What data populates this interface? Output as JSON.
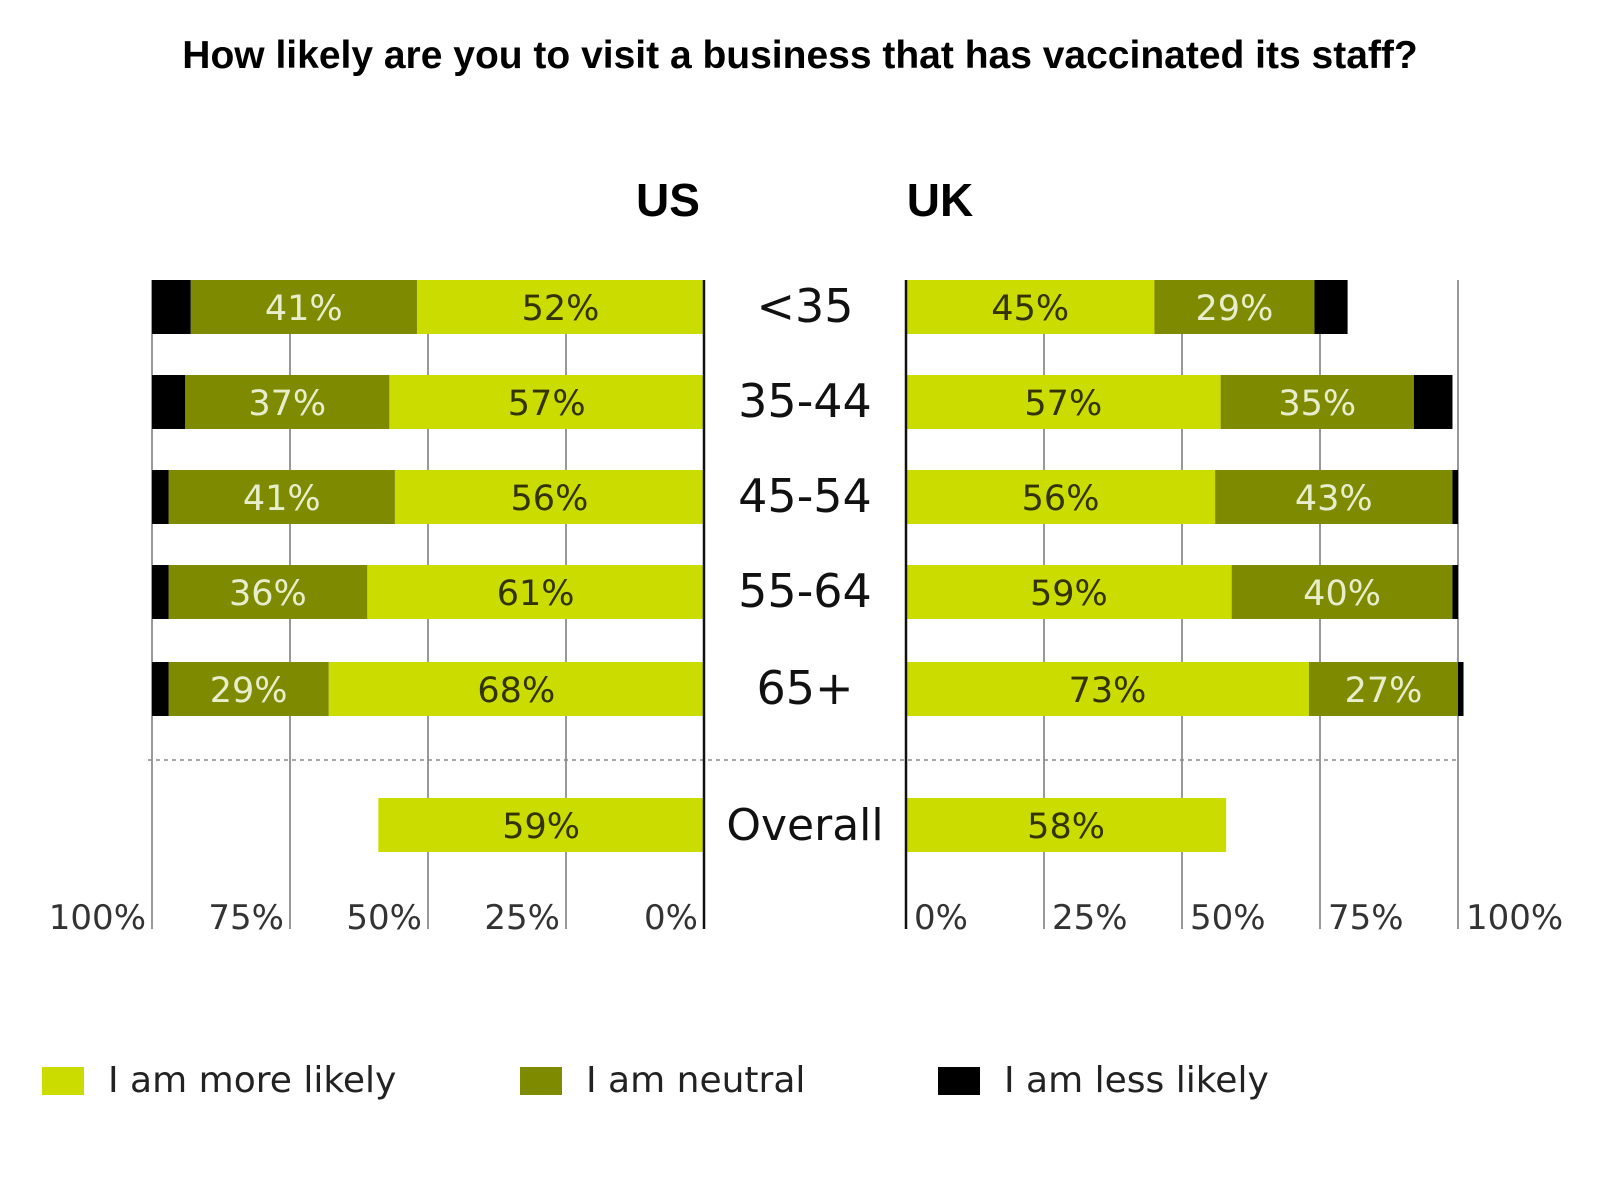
{
  "chart_data": {
    "type": "bar",
    "title": "How likely are you to visit a business that has vaccinated its staff?",
    "colors": {
      "more": "#cbdc00",
      "neutral": "#7e8a00",
      "less": "#000000"
    },
    "categories": [
      "<35",
      "35-44",
      "45-54",
      "55-64",
      "65+"
    ],
    "overall_label": "Overall",
    "x_ticks": [
      "0%",
      "25%",
      "50%",
      "75%",
      "100%"
    ],
    "xlim": [
      0,
      100
    ],
    "panels": [
      {
        "name": "US",
        "direction": "left",
        "series": [
          {
            "name": "I am more likely",
            "values": [
              52,
              57,
              56,
              61,
              68
            ],
            "labels": [
              "52%",
              "57%",
              "56%",
              "61%",
              "68%"
            ]
          },
          {
            "name": "I am neutral",
            "values": [
              41,
              37,
              41,
              36,
              29
            ],
            "labels": [
              "41%",
              "37%",
              "41%",
              "36%",
              "29%"
            ]
          },
          {
            "name": "I am less likely",
            "values": [
              7,
              6,
              3,
              3,
              3
            ]
          }
        ],
        "overall": {
          "value": 59,
          "label": "59%"
        }
      },
      {
        "name": "UK",
        "direction": "right",
        "series": [
          {
            "name": "I am more likely",
            "values": [
              45,
              57,
              56,
              59,
              73
            ],
            "labels": [
              "45%",
              "57%",
              "56%",
              "59%",
              "73%"
            ]
          },
          {
            "name": "I am neutral",
            "values": [
              29,
              35,
              43,
              40,
              27
            ],
            "labels": [
              "29%",
              "35%",
              "43%",
              "40%",
              "27%"
            ]
          },
          {
            "name": "I am less likely",
            "values": [
              6,
              7,
              1,
              1,
              1
            ]
          }
        ],
        "overall": {
          "value": 58,
          "label": "58%"
        }
      }
    ],
    "legend": [
      {
        "key": "more",
        "label": "I am more likely"
      },
      {
        "key": "neutral",
        "label": "I am neutral"
      },
      {
        "key": "less",
        "label": "I am less likely"
      }
    ]
  }
}
